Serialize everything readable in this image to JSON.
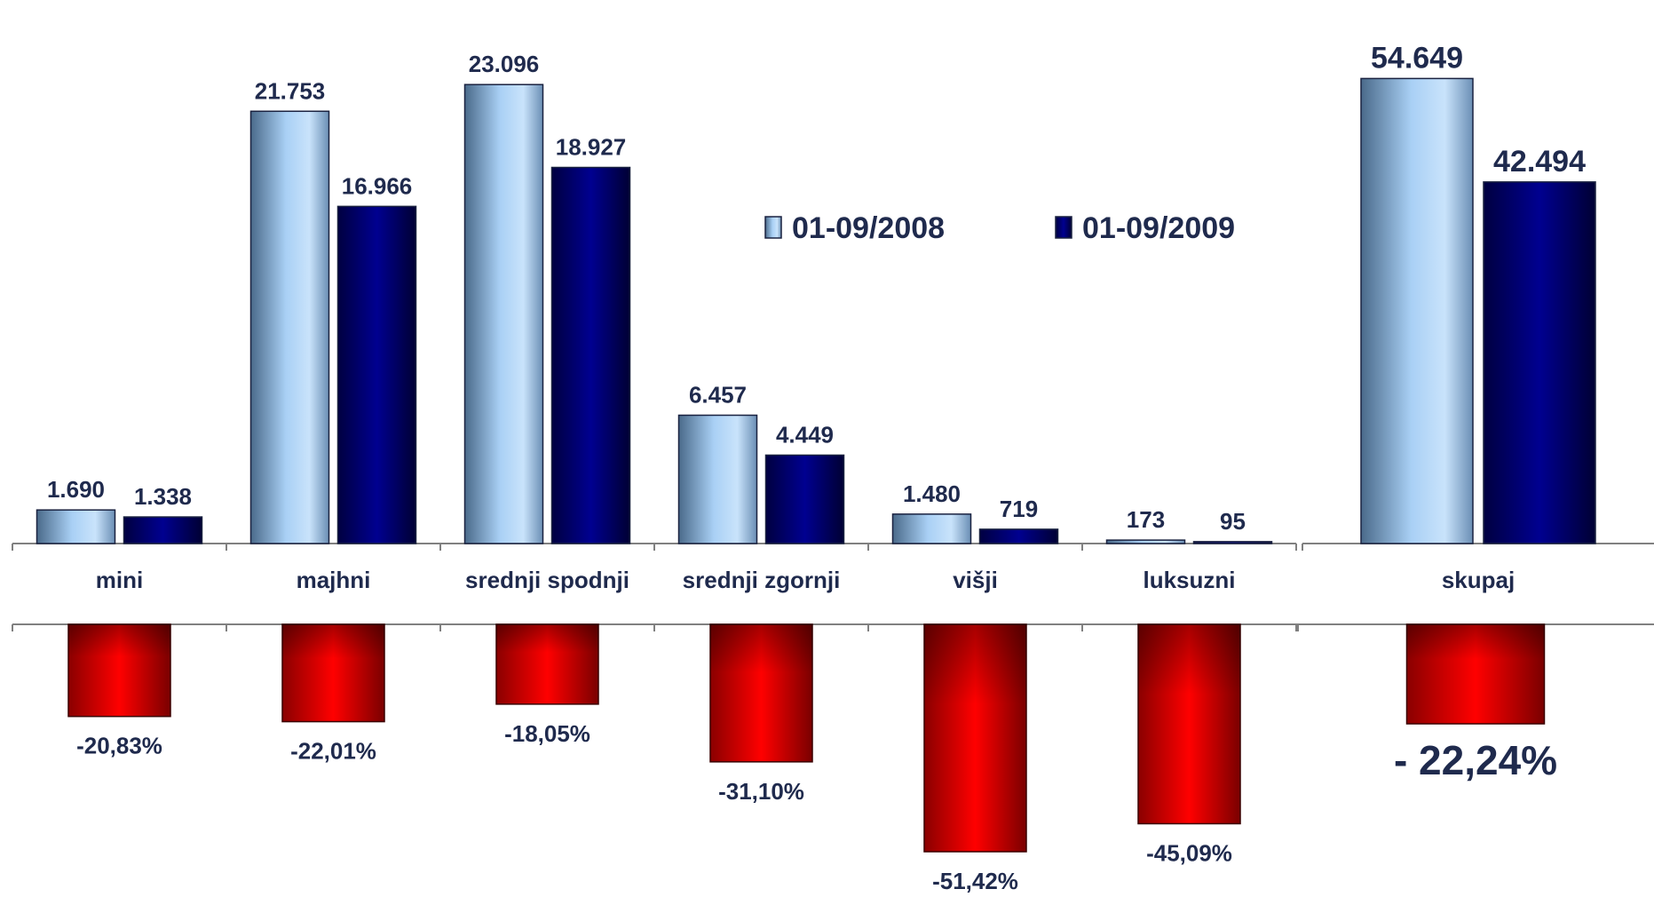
{
  "chart_data": [
    {
      "type": "bar",
      "categories": [
        "mini",
        "majhni",
        "srednji spodnji",
        "srednji zgornji",
        "višji",
        "luksuzni",
        "skupaj"
      ],
      "series": [
        {
          "name": "01-09/2008",
          "values": [
            1690,
            21753,
            23096,
            6457,
            1480,
            173,
            54649
          ],
          "labels": [
            "1.690",
            "21.753",
            "23.096",
            "6.457",
            "1.480",
            "173",
            "54.649"
          ],
          "color": "#9dc3e6"
        },
        {
          "name": "01-09/2009",
          "values": [
            1338,
            16966,
            18927,
            4449,
            719,
            95,
            42494
          ],
          "labels": [
            "1.338",
            "16.966",
            "18.927",
            "4.449",
            "719",
            "95",
            "42.494"
          ],
          "color": "#000080"
        }
      ],
      "legend_position": "top-right",
      "scale_note": "skupaj uses its own larger scale"
    },
    {
      "type": "bar",
      "categories": [
        "mini",
        "majhni",
        "srednji spodnji",
        "srednji zgornji",
        "višji",
        "luksuzni",
        "skupaj"
      ],
      "values": [
        -20.83,
        -22.01,
        -18.05,
        -31.1,
        -51.42,
        -45.09,
        -22.24
      ],
      "labels": [
        "-20,83%",
        "-22,01%",
        "-18,05%",
        "-31,10%",
        "-51,42%",
        "-45,09%",
        "- 22,24%"
      ],
      "color": "#ff0000"
    }
  ],
  "colors": {
    "label_text": "#1f2a4d",
    "series_light": "#9dc3e6",
    "series_dark": "#000080",
    "change_bar": "#ff0000",
    "axis": "#808080"
  }
}
